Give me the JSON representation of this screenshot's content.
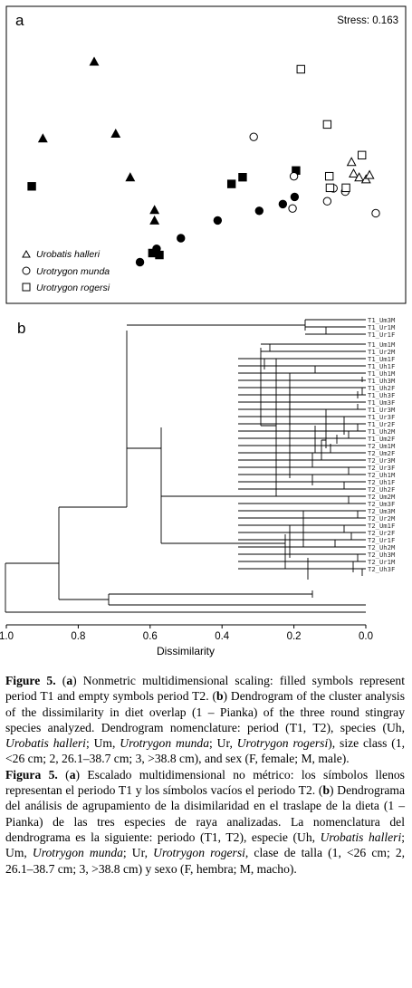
{
  "panel_a": {
    "label": "a",
    "stress": "Stress: 0.163",
    "legend": [
      {
        "symbol": "triangle",
        "text": "Urobatis halleri"
      },
      {
        "symbol": "circle",
        "text": "Urotrygon munda"
      },
      {
        "symbol": "square",
        "text": "Urotrygon rogersi"
      }
    ],
    "points": {
      "filled_triangle": [
        [
          0.188,
          0.1
        ],
        [
          0.04,
          0.42
        ],
        [
          0.25,
          0.4
        ],
        [
          0.292,
          0.582
        ],
        [
          0.362,
          0.718
        ],
        [
          0.362,
          0.762
        ]
      ],
      "filled_circle": [
        [
          0.32,
          0.934
        ],
        [
          0.368,
          0.878
        ],
        [
          0.438,
          0.834
        ],
        [
          0.544,
          0.76
        ],
        [
          0.664,
          0.72
        ],
        [
          0.732,
          0.692
        ],
        [
          0.766,
          0.662
        ]
      ],
      "filled_square": [
        [
          0.008,
          0.618
        ],
        [
          0.356,
          0.896
        ],
        [
          0.376,
          0.904
        ],
        [
          0.584,
          0.608
        ],
        [
          0.616,
          0.58
        ],
        [
          0.77,
          0.552
        ]
      ],
      "open_triangle": [
        [
          0.93,
          0.518
        ],
        [
          0.936,
          0.566
        ],
        [
          0.952,
          0.582
        ],
        [
          0.972,
          0.59
        ],
        [
          0.982,
          0.572
        ]
      ],
      "open_circle": [
        [
          0.648,
          0.412
        ],
        [
          0.764,
          0.576
        ],
        [
          0.76,
          0.71
        ],
        [
          0.86,
          0.68
        ],
        [
          0.878,
          0.626
        ],
        [
          0.912,
          0.64
        ],
        [
          1.0,
          0.73
        ]
      ],
      "open_square": [
        [
          0.784,
          0.13
        ],
        [
          0.86,
          0.36
        ],
        [
          0.866,
          0.576
        ],
        [
          0.868,
          0.624
        ],
        [
          0.914,
          0.624
        ],
        [
          0.96,
          0.488
        ]
      ]
    }
  },
  "panel_b": {
    "label": "b",
    "leaves": [
      "T1_Um3M",
      "T1_Ur1M",
      "T1_Ur1F",
      "T1_Um1M",
      "T1_Ur2M",
      "T1_Um1F",
      "T1_Uh1F",
      "T1_Uh1M",
      "T1_Uh3M",
      "T1_Uh2F",
      "T1_Uh3F",
      "T1_Um3F",
      "T1_Ur3M",
      "T1_Ur3F",
      "T1_Ur2F",
      "T1_Uh2M",
      "T1_Um2F",
      "T2_Um1M",
      "T2_Um2F",
      "T2_Ur3M",
      "T2_Ur3F",
      "T2_Uh1M",
      "T2_Uh1F",
      "T2_Uh2F",
      "T2_Um2M",
      "T2_Um3F",
      "T2_Um3M",
      "T2_Ur2M",
      "T2_Um1F",
      "T2_Ur2F",
      "T2_Ur1F",
      "T2_Uh2M",
      "T2_Uh3M",
      "T2_Ur1M",
      "T2_Uh3F"
    ],
    "axis_ticks": [
      "1.0",
      "0.8",
      "0.6",
      "0.4",
      "0.2",
      "0.0"
    ],
    "axis_label": "Dissimilarity"
  },
  "caption": {
    "en_label": "Figure 5.",
    "en_part1": " (",
    "en_a": "a",
    "en_part2": ") Nonmetric multidimensional scaling: filled symbols represent period T1 and empty symbols period T2. (",
    "en_b": "b",
    "en_part3": ") Dendrogram of the cluster analysis of the dissimilarity in diet overlap (1 – Pianka) of the three round stingray species analyzed. Dendrogram nomenclature: period (T1, T2), species (Uh, ",
    "en_uh": "Urobatis halleri",
    "en_part4": "; Um, ",
    "en_um": "Urotrygon munda",
    "en_part5": "; Ur, ",
    "en_ur": "Urotrygon rogersi",
    "en_part6": "), size class (1, <26 cm; 2, 26.1–38.7 cm; 3, >38.8 cm), and sex (F, female; M, male).",
    "es_label": "Figura 5.",
    "es_part1": " (",
    "es_a": "a",
    "es_part2": ") Escalado multidimensional no métrico: los símbolos llenos representan el periodo T1 y los símbolos vacíos el periodo T2. (",
    "es_b": "b",
    "es_part3": ") Dendrograma del análisis de agrupamiento de la disimilaridad en el traslape de la dieta (1 – Pianka) de las tres especies de raya analizadas. La nomenclatura del dendrograma es la siguiente: periodo (T1, T2), especie (Uh, ",
    "es_uh": "Urobatis halleri",
    "es_part4": "; Um, ",
    "es_um": "Urotrygon munda",
    "es_part5": "; Ur, ",
    "es_ur": "Urotrygon rogersi",
    "es_part6": ", clase de talla (1, <26 cm; 2, 26.1–38.7 cm; 3, >38.8 cm) y sexo (F, hembra; M, macho)."
  }
}
